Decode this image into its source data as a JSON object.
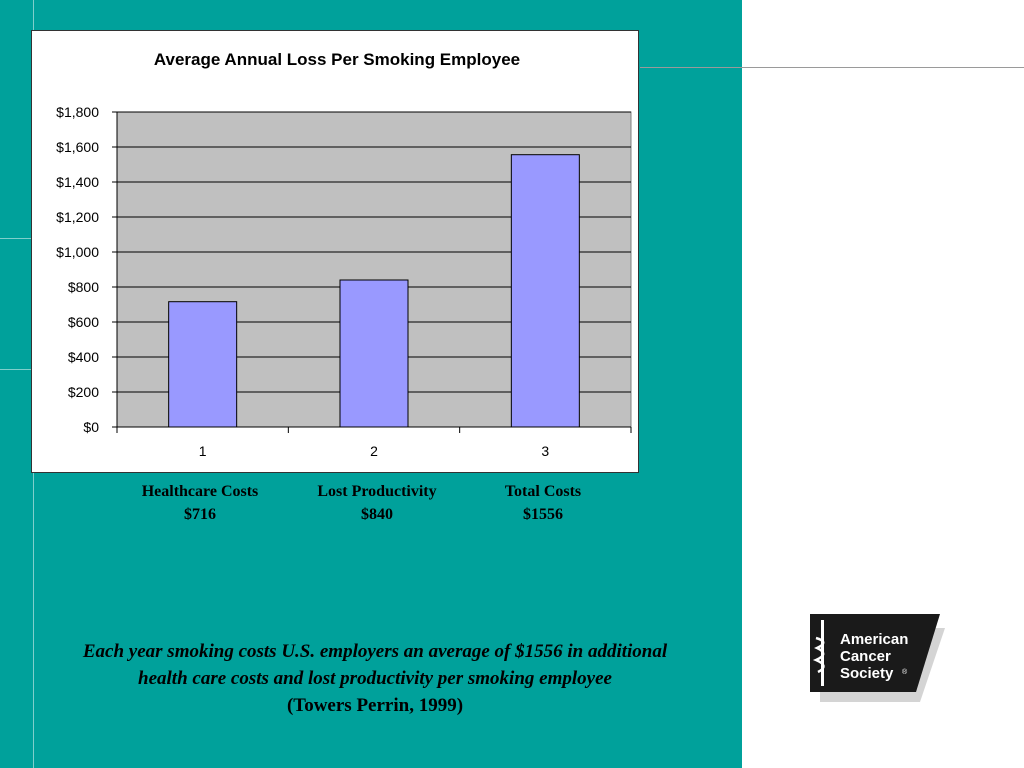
{
  "chart_data": {
    "type": "bar",
    "title": "Average Annual Loss Per Smoking Employee",
    "categories": [
      "1",
      "2",
      "3"
    ],
    "values": [
      716,
      840,
      1556
    ],
    "ylim": [
      0,
      1800
    ],
    "yticks": [
      "$0",
      "$200",
      "$400",
      "$600",
      "$800",
      "$1,000",
      "$1,200",
      "$1,400",
      "$1,600",
      "$1,800"
    ],
    "ytick_values": [
      0,
      200,
      400,
      600,
      800,
      1000,
      1200,
      1400,
      1600,
      1800
    ],
    "grid": true,
    "legend": "none",
    "bar_color": "#9999FF",
    "plot_bg": "#C0C0C0"
  },
  "category_labels": [
    {
      "name": "Healthcare Costs",
      "value": "$716"
    },
    {
      "name": "Lost Productivity",
      "value": "$840"
    },
    {
      "name": "Total Costs",
      "value": "$1556"
    }
  ],
  "caption": {
    "line1": "Each year smoking costs U.S. employers an average of $1556 in additional",
    "line2": "health care costs and lost productivity per smoking employee",
    "source": "(Towers Perrin, 1999)"
  },
  "logo": {
    "line1": "American",
    "line2": "Cancer",
    "line3": "Society",
    "mark": "®"
  },
  "colors": {
    "background": "#00A19B",
    "bar": "#9999FF",
    "plot": "#C0C0C0"
  }
}
